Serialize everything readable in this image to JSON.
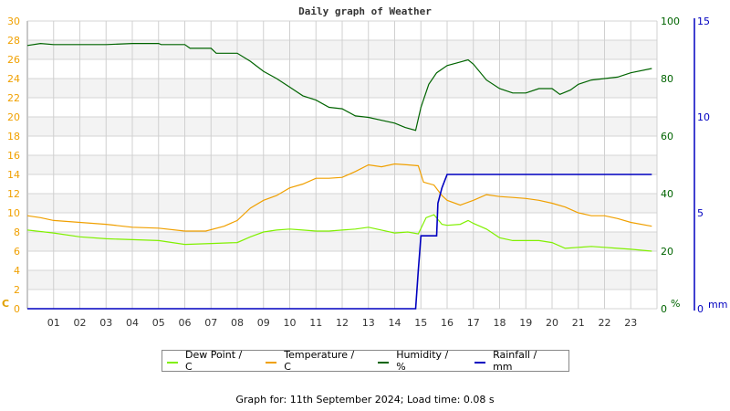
{
  "chart_data": {
    "type": "line",
    "title": "Daily graph of Weather",
    "xlabel": "",
    "x_ticks": [
      "01",
      "02",
      "03",
      "04",
      "05",
      "06",
      "07",
      "08",
      "09",
      "10",
      "11",
      "12",
      "13",
      "14",
      "15",
      "16",
      "17",
      "18",
      "19",
      "20",
      "21",
      "22",
      "23"
    ],
    "axes": {
      "left": {
        "label": "C",
        "ticks": [
          0,
          2,
          4,
          6,
          8,
          10,
          12,
          14,
          16,
          18,
          20,
          22,
          24,
          26,
          28,
          30
        ],
        "range": [
          0,
          30
        ],
        "color": "#f0a000"
      },
      "right1": {
        "label": "%",
        "ticks": [
          0,
          20,
          40,
          60,
          80,
          100
        ],
        "range": [
          0,
          100
        ],
        "color": "#006400"
      },
      "right2": {
        "label": "mm",
        "ticks": [
          0,
          5,
          10,
          15
        ],
        "range": [
          0,
          15
        ],
        "color": "#0000c0"
      }
    },
    "grid": true,
    "legend_position": "bottom",
    "series": [
      {
        "name": "Dew Point / C",
        "color": "#80f000",
        "axis": "left",
        "x": [
          0,
          1,
          2,
          3,
          4,
          5,
          6,
          7,
          8,
          8.5,
          9,
          9.5,
          10,
          10.5,
          11,
          11.5,
          12,
          12.5,
          13,
          13.5,
          14,
          14.5,
          14.9,
          15.2,
          15.5,
          15.8,
          16,
          16.5,
          16.8,
          17,
          17.5,
          18,
          18.5,
          19,
          19.5,
          20,
          20.5,
          21,
          21.5,
          22,
          22.5,
          23,
          23.8
        ],
        "values": [
          8.2,
          7.9,
          7.5,
          7.3,
          7.2,
          7.1,
          6.7,
          6.8,
          6.9,
          7.5,
          8.0,
          8.2,
          8.3,
          8.2,
          8.1,
          8.1,
          8.2,
          8.3,
          8.5,
          8.2,
          7.9,
          8.0,
          7.8,
          9.5,
          9.8,
          8.8,
          8.7,
          8.8,
          9.2,
          8.9,
          8.3,
          7.4,
          7.1,
          7.1,
          7.1,
          6.9,
          6.3,
          6.4,
          6.5,
          6.4,
          6.3,
          6.2,
          6.0
        ]
      },
      {
        "name": "Temperature / C",
        "color": "#f0a000",
        "axis": "left",
        "x": [
          0,
          0.5,
          1,
          2,
          3,
          4,
          5,
          6,
          6.8,
          7.5,
          8,
          8.5,
          9,
          9.5,
          10,
          10.5,
          11,
          11.5,
          12,
          12.5,
          13,
          13.5,
          14,
          14.5,
          14.9,
          15.1,
          15.5,
          15.8,
          16,
          16.5,
          17,
          17.5,
          18,
          18.5,
          19,
          19.5,
          20,
          20.5,
          21,
          21.5,
          22,
          22.5,
          23,
          23.8
        ],
        "values": [
          9.7,
          9.5,
          9.2,
          9.0,
          8.8,
          8.5,
          8.4,
          8.1,
          8.1,
          8.6,
          9.2,
          10.5,
          11.3,
          11.8,
          12.6,
          13.0,
          13.6,
          13.6,
          13.7,
          14.3,
          15.0,
          14.8,
          15.1,
          15.0,
          14.9,
          13.2,
          12.9,
          11.8,
          11.3,
          10.8,
          11.3,
          11.9,
          11.7,
          11.6,
          11.5,
          11.3,
          11.0,
          10.6,
          10.0,
          9.7,
          9.7,
          9.4,
          9.0,
          8.6
        ]
      },
      {
        "name": "Humidity / %",
        "color": "#006400",
        "axis": "left_scaled_percent",
        "x": [
          0,
          0.5,
          1,
          2,
          3,
          4,
          5,
          5.1,
          6,
          6.2,
          7,
          7.2,
          8,
          8.5,
          9,
          9.5,
          10,
          10.5,
          11,
          11.5,
          12,
          12.5,
          13,
          13.5,
          14,
          14.4,
          14.8,
          15,
          15.3,
          15.6,
          16,
          16.4,
          16.8,
          17,
          17.5,
          18,
          18.5,
          19,
          19.5,
          20,
          20.3,
          20.7,
          21,
          21.5,
          22,
          22.5,
          23,
          23.8
        ],
        "values": [
          91.5,
          92.2,
          91.8,
          91.8,
          91.8,
          92.2,
          92.2,
          91.8,
          91.8,
          90.5,
          90.5,
          88.8,
          88.8,
          86,
          82.5,
          80,
          77,
          74,
          72.5,
          70,
          69.5,
          67,
          66.5,
          65.5,
          64.5,
          63,
          62,
          70,
          78,
          82,
          84.5,
          85.5,
          86.5,
          85,
          79.5,
          76.5,
          75,
          75,
          76.5,
          76.5,
          74.5,
          76,
          78,
          79.5,
          80,
          80.5,
          82,
          83.5
        ]
      },
      {
        "name": "Rainfall / mm",
        "color": "#0000c0",
        "axis": "right2",
        "x": [
          0,
          14.8,
          14.9,
          15.0,
          15.6,
          15.65,
          15.8,
          16.0,
          23.8
        ],
        "values": [
          0,
          0,
          2.0,
          3.8,
          3.8,
          5.5,
          6.3,
          7.0,
          7.0
        ]
      }
    ]
  },
  "legend": {
    "items": [
      {
        "label": "Dew Point / C",
        "color": "#80f000"
      },
      {
        "label": "Temperature / C",
        "color": "#f0a000"
      },
      {
        "label": "Humidity / %",
        "color": "#006400"
      },
      {
        "label": "Rainfall / mm",
        "color": "#0000c0"
      }
    ]
  },
  "footer": {
    "text": "Graph for: 11th September 2024; Load time: 0.08 s"
  }
}
